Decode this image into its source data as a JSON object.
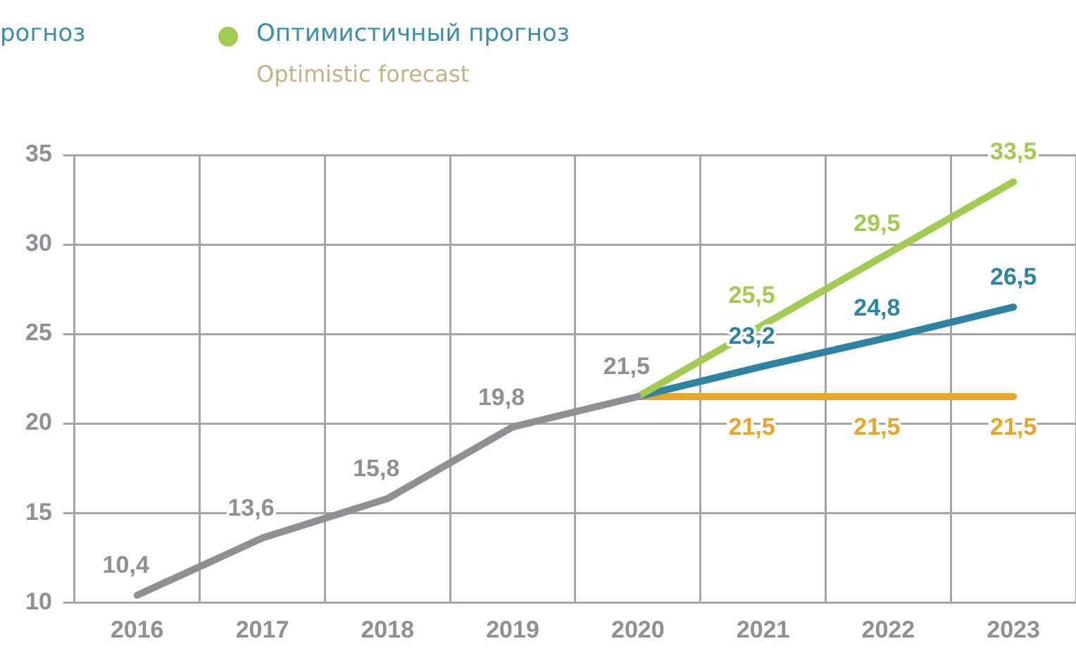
{
  "chart_data": {
    "type": "line",
    "categories": [
      "2016",
      "2017",
      "2018",
      "2019",
      "2020",
      "2021",
      "2022",
      "2023"
    ],
    "series": [
      {
        "color": "#8e9094",
        "values": [
          10.4,
          13.6,
          15.8,
          19.8,
          21.5,
          null,
          null,
          null
        ],
        "value_labels": [
          "10,4",
          "13,6",
          "15,8",
          "19,8",
          "21,5",
          null,
          null,
          null
        ]
      },
      {
        "name": "Оптимистичный прогноз",
        "color": "#a3cb52",
        "values": [
          null,
          null,
          null,
          null,
          21.5,
          25.5,
          29.5,
          33.5
        ],
        "value_labels": [
          null,
          null,
          null,
          null,
          null,
          "25,5",
          "29,5",
          "33,5"
        ]
      },
      {
        "color": "#2e84a0",
        "values": [
          null,
          null,
          null,
          null,
          21.5,
          23.2,
          24.8,
          26.5
        ],
        "value_labels": [
          null,
          null,
          null,
          null,
          null,
          "23,2",
          "24,8",
          "26,5"
        ]
      },
      {
        "color": "#e9a42c",
        "values": [
          null,
          null,
          null,
          null,
          21.5,
          21.5,
          21.5,
          21.5
        ],
        "value_labels": [
          null,
          null,
          null,
          null,
          null,
          "21,5",
          "21,5",
          "21,5"
        ]
      }
    ],
    "ylim": [
      10,
      35
    ],
    "yticks": [
      10,
      15,
      20,
      25,
      30,
      35
    ],
    "grid": true,
    "legend": "top",
    "marker": "none",
    "line_style": "solid",
    "annotations": [
      "рогноз",
      "Optimistic forecast"
    ]
  }
}
